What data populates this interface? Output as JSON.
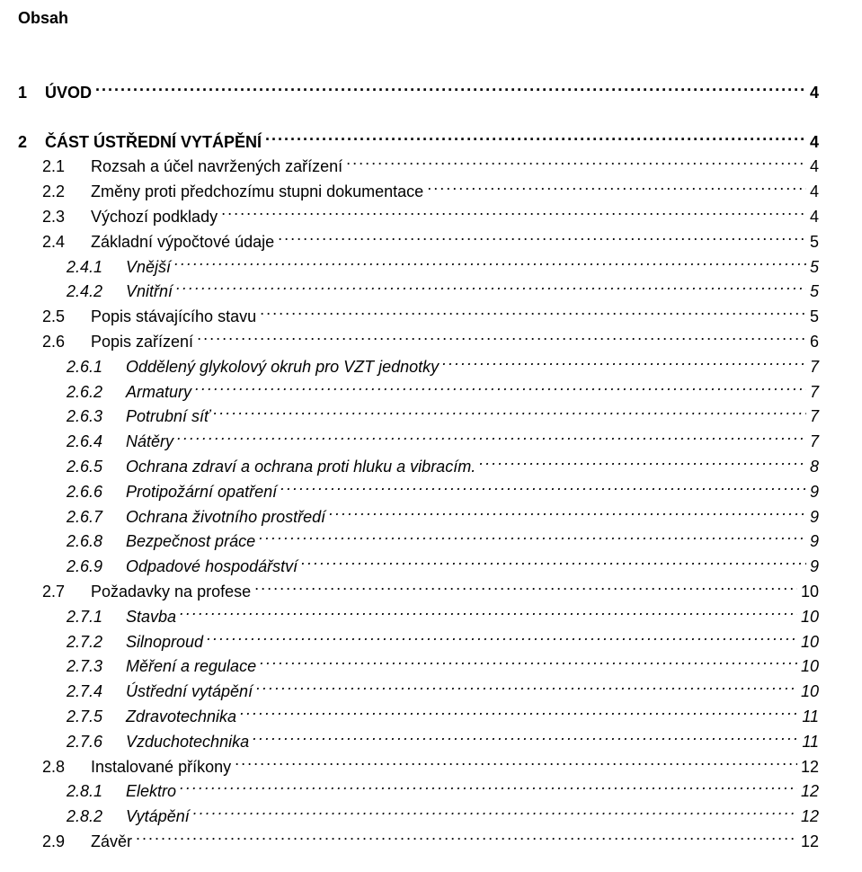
{
  "title": "Obsah",
  "entries": [
    {
      "level": 1,
      "num": "1",
      "label": "ÚVOD",
      "page": "4",
      "spacer": false
    },
    {
      "level": 1,
      "num": "2",
      "label": "ČÁST ÚSTŘEDNÍ VYTÁPĚNÍ",
      "page": "4",
      "spacer": true
    },
    {
      "level": 2,
      "num": "2.1",
      "label": "Rozsah a účel navržených zařízení",
      "page": "4",
      "spacer": false
    },
    {
      "level": 2,
      "num": "2.2",
      "label": "Změny proti předchozímu stupni dokumentace",
      "page": "4",
      "spacer": false
    },
    {
      "level": 2,
      "num": "2.3",
      "label": "Výchozí podklady",
      "page": "4",
      "spacer": false
    },
    {
      "level": 2,
      "num": "2.4",
      "label": "Základní výpočtové údaje",
      "page": "5",
      "spacer": false
    },
    {
      "level": 3,
      "num": "2.4.1",
      "label": "Vnější",
      "page": "5",
      "spacer": false
    },
    {
      "level": 3,
      "num": "2.4.2",
      "label": "Vnitřní",
      "page": "5",
      "spacer": false
    },
    {
      "level": 2,
      "num": "2.5",
      "label": "Popis stávajícího stavu",
      "page": "5",
      "spacer": false
    },
    {
      "level": 2,
      "num": "2.6",
      "label": "Popis zařízení",
      "page": "6",
      "spacer": false
    },
    {
      "level": 3,
      "num": "2.6.1",
      "label": "Oddělený glykolový okruh pro VZT jednotky",
      "page": "7",
      "spacer": false
    },
    {
      "level": 3,
      "num": "2.6.2",
      "label": "Armatury",
      "page": "7",
      "spacer": false
    },
    {
      "level": 3,
      "num": "2.6.3",
      "label": "Potrubní síť",
      "page": "7",
      "spacer": false
    },
    {
      "level": 3,
      "num": "2.6.4",
      "label": "Nátěry",
      "page": "7",
      "spacer": false
    },
    {
      "level": 3,
      "num": "2.6.5",
      "label": "Ochrana zdraví a ochrana proti hluku a vibracím.",
      "page": "8",
      "spacer": false
    },
    {
      "level": 3,
      "num": "2.6.6",
      "label": "Protipožární opatření",
      "page": "9",
      "spacer": false
    },
    {
      "level": 3,
      "num": "2.6.7",
      "label": "Ochrana životního prostředí",
      "page": "9",
      "spacer": false
    },
    {
      "level": 3,
      "num": "2.6.8",
      "label": "Bezpečnost práce",
      "page": "9",
      "spacer": false
    },
    {
      "level": 3,
      "num": "2.6.9",
      "label": "Odpadové hospodářství",
      "page": "9",
      "spacer": false
    },
    {
      "level": 2,
      "num": "2.7",
      "label": "Požadavky na profese",
      "page": "10",
      "spacer": false
    },
    {
      "level": 3,
      "num": "2.7.1",
      "label": "Stavba",
      "page": "10",
      "spacer": false
    },
    {
      "level": 3,
      "num": "2.7.2",
      "label": "Silnoproud",
      "page": "10",
      "spacer": false
    },
    {
      "level": 3,
      "num": "2.7.3",
      "label": "Měření a regulace",
      "page": "10",
      "spacer": false
    },
    {
      "level": 3,
      "num": "2.7.4",
      "label": "Ústřední vytápění",
      "page": "10",
      "spacer": false
    },
    {
      "level": 3,
      "num": "2.7.5",
      "label": "Zdravotechnika",
      "page": "11",
      "spacer": false
    },
    {
      "level": 3,
      "num": "2.7.6",
      "label": "Vzduchotechnika",
      "page": "11",
      "spacer": false
    },
    {
      "level": 2,
      "num": "2.8",
      "label": "Instalované příkony",
      "page": "12",
      "spacer": false
    },
    {
      "level": 3,
      "num": "2.8.1",
      "label": "Elektro",
      "page": "12",
      "spacer": false
    },
    {
      "level": 3,
      "num": "2.8.2",
      "label": "Vytápění",
      "page": "12",
      "spacer": false
    },
    {
      "level": 2,
      "num": "2.9",
      "label": "Závěr",
      "page": "12",
      "spacer": false
    }
  ]
}
